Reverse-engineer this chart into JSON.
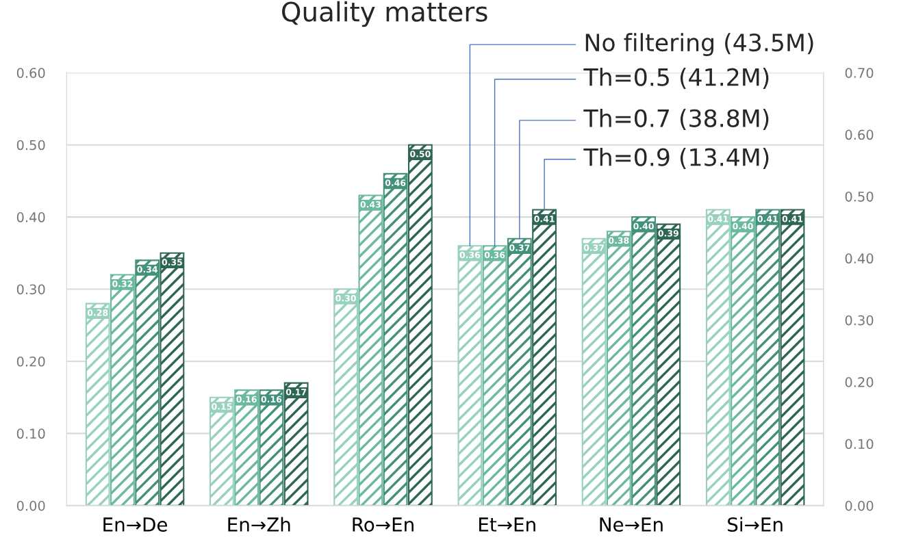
{
  "chart_data": {
    "type": "bar",
    "title": "Quality matters",
    "categories": [
      "En→De",
      "En→Zh",
      "Ro→En",
      "Et→En",
      "Ne→En",
      "Si→En"
    ],
    "series": [
      {
        "name": "No filtering (43.5M)",
        "color": "#99d1bf",
        "values": [
          0.28,
          0.15,
          0.3,
          0.36,
          0.37,
          0.41
        ],
        "value_labels": [
          "0.28",
          "0.15",
          "0.30",
          "0.36",
          "0.37",
          "0.41"
        ]
      },
      {
        "name": "Th=0.5 (41.2M)",
        "color": "#6ab9a0",
        "values": [
          0.32,
          0.16,
          0.43,
          0.36,
          0.38,
          0.4
        ],
        "value_labels": [
          "0.32",
          "0.16",
          "0.43",
          "0.36",
          "0.38",
          "0.40"
        ]
      },
      {
        "name": "Th=0.7 (38.8M)",
        "color": "#43917a",
        "values": [
          0.34,
          0.16,
          0.46,
          0.37,
          0.4,
          0.41
        ],
        "value_labels": [
          "0.34",
          "0.16",
          "0.46",
          "0.37",
          "0.40",
          "0.41"
        ]
      },
      {
        "name": "Th=0.9 (13.4M)",
        "color": "#2f6555",
        "values": [
          0.35,
          0.17,
          0.5,
          0.41,
          0.39,
          0.41
        ],
        "value_labels": [
          "0.35",
          "0.17",
          "0.50",
          "0.41",
          "0.39",
          "0.41"
        ]
      }
    ],
    "ylim": [
      0,
      0.6
    ],
    "yticks": [
      {
        "value": 0,
        "label": "0.00"
      },
      {
        "value": 0.1,
        "label": "0.10"
      },
      {
        "value": 0.2,
        "label": "0.20"
      },
      {
        "value": 0.3,
        "label": "0.30"
      },
      {
        "value": 0.4,
        "label": "0.40"
      },
      {
        "value": 0.5,
        "label": "0.50"
      },
      {
        "value": 0.6,
        "label": "0.60"
      }
    ],
    "y2lim": [
      0,
      0.7
    ],
    "y2ticks": [
      {
        "value": 0,
        "label": "0.00"
      },
      {
        "value": 0.1,
        "label": "0.10"
      },
      {
        "value": 0.2,
        "label": "0.20"
      },
      {
        "value": 0.3,
        "label": "0.30"
      },
      {
        "value": 0.4,
        "label": "0.40"
      },
      {
        "value": 0.5,
        "label": "0.50"
      },
      {
        "value": 0.6,
        "label": "0.60"
      },
      {
        "value": 0.7,
        "label": "0.70"
      }
    ],
    "grid": "y",
    "legend": false
  }
}
